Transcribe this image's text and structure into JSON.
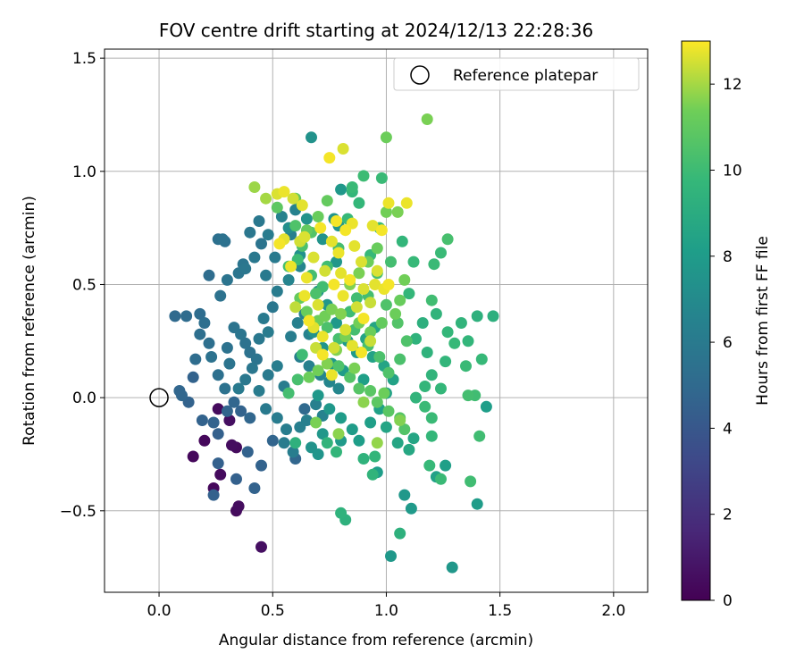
{
  "chart_data": {
    "type": "scatter",
    "title": "FOV centre drift starting at 2024/12/13 22:28:36",
    "xlabel": "Angular distance from reference (arcmin)",
    "ylabel": "Rotation from reference (arcmin)",
    "xlim": [
      -0.24,
      2.15
    ],
    "ylim": [
      -0.86,
      1.54
    ],
    "x_ticks": [
      0.0,
      0.5,
      1.0,
      1.5,
      2.0
    ],
    "x_tick_labels": [
      "0.0",
      "0.5",
      "1.0",
      "1.5",
      "2.0"
    ],
    "y_ticks": [
      -0.5,
      0.0,
      0.5,
      1.0,
      1.5
    ],
    "y_tick_labels": [
      "−0.5",
      "0.0",
      "0.5",
      "1.0",
      "1.5"
    ],
    "grid": true,
    "legend": {
      "placement": "top-right",
      "entries": [
        "Reference platepar"
      ]
    },
    "reference_point": {
      "x": 0.0,
      "y": 0.0,
      "marker": "open-circle"
    },
    "colorbar": {
      "label": "Hours from first FF file",
      "range": [
        0,
        13
      ],
      "ticks": [
        0,
        2,
        4,
        6,
        8,
        10,
        12
      ],
      "tick_labels": [
        "0",
        "2",
        "4",
        "6",
        "8",
        "10",
        "12"
      ],
      "colormap": "viridis"
    },
    "points": [
      [
        0.2,
        -0.19,
        0.3
      ],
      [
        0.15,
        -0.26,
        0.3
      ],
      [
        0.24,
        -0.4,
        0.3
      ],
      [
        0.26,
        -0.05,
        0.4
      ],
      [
        0.27,
        -0.34,
        0.4
      ],
      [
        0.32,
        -0.21,
        0.5
      ],
      [
        0.34,
        -0.22,
        0.4
      ],
      [
        0.35,
        -0.48,
        0.5
      ],
      [
        0.34,
        -0.5,
        0.4
      ],
      [
        0.45,
        -0.66,
        0.6
      ],
      [
        0.31,
        -0.1,
        0.6
      ],
      [
        0.09,
        0.03,
        4.8
      ],
      [
        0.1,
        0.01,
        4.8
      ],
      [
        0.13,
        -0.02,
        4.6
      ],
      [
        0.15,
        0.09,
        4.6
      ],
      [
        0.19,
        -0.1,
        4.6
      ],
      [
        0.24,
        -0.11,
        4.6
      ],
      [
        0.26,
        -0.16,
        4.5
      ],
      [
        0.24,
        -0.43,
        4.5
      ],
      [
        0.26,
        -0.29,
        4.5
      ],
      [
        0.34,
        -0.36,
        4.5
      ],
      [
        0.39,
        -0.24,
        4.6
      ],
      [
        0.42,
        -0.4,
        4.6
      ],
      [
        0.45,
        -0.3,
        4.6
      ],
      [
        0.3,
        -0.06,
        4.7
      ],
      [
        0.33,
        -0.02,
        4.8
      ],
      [
        0.36,
        -0.06,
        4.6
      ],
      [
        0.4,
        -0.09,
        4.8
      ],
      [
        0.5,
        -0.19,
        4.7
      ],
      [
        0.6,
        -0.27,
        4.8
      ],
      [
        0.64,
        -0.05,
        5.0
      ],
      [
        0.07,
        0.36,
        5.0
      ],
      [
        0.12,
        0.36,
        5.1
      ],
      [
        0.18,
        0.37,
        5.2
      ],
      [
        0.2,
        0.33,
        5.3
      ],
      [
        0.16,
        0.17,
        5.2
      ],
      [
        0.18,
        0.28,
        5.3
      ],
      [
        0.22,
        0.24,
        5.3
      ],
      [
        0.23,
        0.18,
        5.5
      ],
      [
        0.26,
        0.1,
        5.4
      ],
      [
        0.29,
        0.04,
        5.5
      ],
      [
        0.31,
        0.15,
        5.6
      ],
      [
        0.3,
        0.22,
        5.5
      ],
      [
        0.33,
        0.31,
        5.6
      ],
      [
        0.36,
        0.28,
        5.7
      ],
      [
        0.38,
        0.24,
        5.5
      ],
      [
        0.4,
        0.2,
        5.5
      ],
      [
        0.43,
        0.17,
        5.6
      ],
      [
        0.27,
        0.45,
        5.5
      ],
      [
        0.3,
        0.52,
        5.6
      ],
      [
        0.35,
        0.55,
        5.7
      ],
      [
        0.38,
        0.57,
        5.8
      ],
      [
        0.42,
        0.62,
        5.9
      ],
      [
        0.45,
        0.68,
        5.6
      ],
      [
        0.48,
        0.72,
        6.1
      ],
      [
        0.51,
        0.62,
        6.0
      ],
      [
        0.44,
        0.78,
        5.9
      ],
      [
        0.37,
        0.59,
        5.7
      ],
      [
        0.47,
        0.54,
        6.0
      ],
      [
        0.52,
        0.47,
        6.1
      ],
      [
        0.5,
        0.4,
        5.8
      ],
      [
        0.46,
        0.35,
        6.0
      ],
      [
        0.48,
        0.29,
        6.1
      ],
      [
        0.44,
        0.26,
        5.9
      ],
      [
        0.41,
        0.13,
        5.8
      ],
      [
        0.38,
        0.08,
        5.9
      ],
      [
        0.35,
        0.04,
        6.0
      ],
      [
        0.44,
        0.03,
        6.1
      ],
      [
        0.48,
        0.1,
        6.0
      ],
      [
        0.52,
        0.14,
        6.2
      ],
      [
        0.55,
        0.05,
        6.1
      ],
      [
        0.47,
        -0.05,
        6.0
      ],
      [
        0.52,
        -0.09,
        6.1
      ],
      [
        0.56,
        -0.14,
        6.2
      ],
      [
        0.55,
        -0.2,
        6.1
      ],
      [
        0.59,
        -0.24,
        6.2
      ],
      [
        0.62,
        -0.13,
        6.3
      ],
      [
        0.65,
        -0.1,
        6.3
      ],
      [
        0.69,
        -0.03,
        6.4
      ],
      [
        0.72,
        -0.08,
        6.5
      ],
      [
        0.58,
        0.27,
        6.2
      ],
      [
        0.61,
        0.33,
        6.4
      ],
      [
        0.64,
        0.37,
        6.5
      ],
      [
        0.66,
        0.28,
        6.5
      ],
      [
        0.62,
        0.18,
        6.3
      ],
      [
        0.66,
        0.14,
        6.4
      ],
      [
        0.71,
        0.1,
        6.6
      ],
      [
        0.75,
        0.07,
        6.7
      ],
      [
        0.79,
        0.04,
        6.8
      ],
      [
        0.58,
        0.72,
        6.3
      ],
      [
        0.54,
        0.8,
        6.5
      ],
      [
        0.6,
        0.83,
        6.5
      ],
      [
        0.57,
        0.52,
        6.6
      ],
      [
        0.62,
        0.58,
        6.7
      ],
      [
        0.29,
        0.69,
        5.4
      ],
      [
        0.28,
        0.7,
        5.5
      ],
      [
        0.26,
        0.7,
        5.4
      ],
      [
        0.4,
        0.73,
        5.8
      ],
      [
        0.22,
        0.54,
        5.2
      ],
      [
        0.67,
        1.15,
        7.4
      ],
      [
        0.57,
        0.75,
        7.2
      ],
      [
        0.62,
        0.63,
        7.4
      ],
      [
        0.65,
        0.79,
        7.5
      ],
      [
        0.72,
        0.7,
        7.5
      ],
      [
        0.78,
        0.6,
        7.7
      ],
      [
        0.79,
        0.76,
        7.6
      ],
      [
        0.8,
        0.92,
        7.8
      ],
      [
        0.77,
        0.79,
        7.6
      ],
      [
        0.7,
        0.47,
        7.5
      ],
      [
        0.74,
        0.41,
        7.7
      ],
      [
        0.78,
        0.33,
        7.8
      ],
      [
        0.83,
        0.25,
        7.9
      ],
      [
        0.87,
        0.2,
        7.9
      ],
      [
        0.81,
        0.12,
        8.0
      ],
      [
        0.76,
        0.15,
        7.8
      ],
      [
        0.72,
        0.22,
        7.6
      ],
      [
        0.68,
        0.29,
        7.4
      ],
      [
        0.7,
        0.01,
        7.8
      ],
      [
        0.75,
        -0.05,
        7.8
      ],
      [
        0.8,
        -0.09,
        8.0
      ],
      [
        0.85,
        -0.14,
        8.0
      ],
      [
        0.88,
        -0.19,
        8.1
      ],
      [
        0.93,
        -0.11,
        8.2
      ],
      [
        0.97,
        -0.05,
        8.3
      ],
      [
        1.0,
        0.02,
        8.3
      ],
      [
        1.03,
        0.08,
        8.4
      ],
      [
        0.99,
        0.14,
        8.5
      ],
      [
        0.94,
        0.18,
        8.4
      ],
      [
        0.91,
        0.26,
        8.5
      ],
      [
        0.95,
        0.31,
        8.6
      ],
      [
        1.0,
        -0.13,
        8.5
      ],
      [
        1.05,
        -0.2,
        8.6
      ],
      [
        1.1,
        -0.23,
        8.7
      ],
      [
        1.12,
        -0.18,
        8.6
      ],
      [
        0.96,
        -0.33,
        8.1
      ],
      [
        0.8,
        -0.19,
        7.9
      ],
      [
        0.72,
        -0.16,
        7.7
      ],
      [
        0.7,
        -0.25,
        7.6
      ],
      [
        0.67,
        -0.22,
        7.5
      ],
      [
        0.9,
        0.08,
        8.2
      ],
      [
        1.08,
        -0.43,
        7.8
      ],
      [
        1.11,
        -0.49,
        7.9
      ],
      [
        1.29,
        -0.75,
        7.7
      ],
      [
        1.02,
        -0.7,
        7.8
      ],
      [
        1.4,
        -0.47,
        8.0
      ],
      [
        1.44,
        -0.04,
        8.1
      ],
      [
        1.26,
        -0.3,
        8.2
      ],
      [
        1.22,
        -0.35,
        8.3
      ],
      [
        0.82,
        -0.54,
        9.3
      ],
      [
        0.8,
        -0.51,
        9.4
      ],
      [
        1.06,
        -0.6,
        9.3
      ],
      [
        0.94,
        -0.34,
        9.5
      ],
      [
        0.9,
        -0.27,
        9.4
      ],
      [
        0.95,
        -0.26,
        9.6
      ],
      [
        0.78,
        -0.24,
        9.6
      ],
      [
        0.74,
        -0.2,
        9.5
      ],
      [
        0.6,
        -0.2,
        9.3
      ],
      [
        1.13,
        0.0,
        9.5
      ],
      [
        1.17,
        0.05,
        9.6
      ],
      [
        1.2,
        0.1,
        9.5
      ],
      [
        1.24,
        0.04,
        9.7
      ],
      [
        1.26,
        0.16,
        9.6
      ],
      [
        1.18,
        0.2,
        9.4
      ],
      [
        1.13,
        0.26,
        9.4
      ],
      [
        1.16,
        0.33,
        9.2
      ],
      [
        1.22,
        0.37,
        9.5
      ],
      [
        1.27,
        0.29,
        9.7
      ],
      [
        1.3,
        0.24,
        9.8
      ],
      [
        1.36,
        0.25,
        9.6
      ],
      [
        1.33,
        0.33,
        9.5
      ],
      [
        1.4,
        0.36,
        9.3
      ],
      [
        1.47,
        0.36,
        9.2
      ],
      [
        1.42,
        0.17,
        9.8
      ],
      [
        1.35,
        0.14,
        9.9
      ],
      [
        1.39,
        0.01,
        10.1
      ],
      [
        1.36,
        0.01,
        10.2
      ],
      [
        1.41,
        -0.17,
        10.1
      ],
      [
        1.37,
        -0.37,
        10.1
      ],
      [
        1.24,
        -0.36,
        9.9
      ],
      [
        1.19,
        -0.3,
        9.8
      ],
      [
        1.2,
        -0.17,
        9.7
      ],
      [
        1.2,
        -0.09,
        9.9
      ],
      [
        1.17,
        -0.04,
        9.9
      ],
      [
        1.12,
        0.6,
        9.8
      ],
      [
        1.21,
        0.59,
        9.9
      ],
      [
        1.24,
        0.64,
        9.9
      ],
      [
        1.27,
        0.7,
        10.3
      ],
      [
        1.1,
        0.46,
        9.7
      ],
      [
        1.2,
        0.43,
        10.1
      ],
      [
        1.07,
        0.69,
        9.6
      ],
      [
        0.98,
        0.97,
        9.9
      ],
      [
        0.93,
        0.63,
        9.8
      ],
      [
        0.88,
        0.86,
        9.7
      ],
      [
        0.85,
        0.91,
        9.7
      ],
      [
        0.83,
        0.79,
        9.8
      ],
      [
        0.85,
        0.93,
        9.9
      ],
      [
        0.9,
        0.98,
        10.0
      ],
      [
        0.97,
        0.75,
        9.9
      ],
      [
        1.02,
        0.6,
        10.2
      ],
      [
        0.96,
        0.55,
        10.3
      ],
      [
        0.92,
        0.45,
        10.2
      ],
      [
        0.87,
        0.44,
        10.1
      ],
      [
        0.84,
        0.38,
        10.0
      ],
      [
        0.86,
        0.3,
        10.2
      ],
      [
        0.92,
        0.23,
        10.3
      ],
      [
        0.97,
        0.18,
        10.4
      ],
      [
        1.01,
        0.11,
        10.5
      ],
      [
        1.06,
        0.17,
        10.4
      ],
      [
        1.09,
        0.25,
        10.5
      ],
      [
        1.05,
        0.33,
        10.6
      ],
      [
        1.0,
        0.41,
        10.5
      ],
      [
        0.79,
        0.66,
        10.2
      ],
      [
        0.74,
        0.58,
        10.1
      ],
      [
        0.72,
        0.49,
        10.1
      ],
      [
        0.67,
        0.54,
        10.2
      ],
      [
        0.69,
        0.46,
        10.4
      ],
      [
        0.74,
        0.31,
        10.4
      ],
      [
        0.79,
        0.26,
        10.3
      ],
      [
        0.79,
        0.14,
        10.5
      ],
      [
        0.84,
        0.09,
        10.6
      ],
      [
        0.88,
        0.04,
        10.7
      ],
      [
        0.93,
        0.03,
        10.8
      ],
      [
        0.96,
        -0.02,
        10.9
      ],
      [
        1.01,
        -0.06,
        10.8
      ],
      [
        1.06,
        -0.09,
        10.7
      ],
      [
        1.08,
        -0.14,
        10.6
      ],
      [
        0.63,
        0.19,
        10.0
      ],
      [
        0.61,
        0.08,
        10.3
      ],
      [
        0.57,
        0.02,
        10.2
      ],
      [
        0.61,
        0.61,
        10.0
      ],
      [
        0.63,
        0.67,
        10.4
      ],
      [
        0.67,
        0.73,
        10.6
      ],
      [
        0.6,
        0.76,
        10.5
      ],
      [
        0.57,
        0.58,
        10.3
      ],
      [
        0.52,
        0.84,
        10.9
      ],
      [
        0.6,
        0.88,
        11.0
      ],
      [
        0.65,
        0.74,
        11.1
      ],
      [
        0.7,
        0.8,
        11.2
      ],
      [
        0.74,
        0.87,
        11.1
      ],
      [
        0.62,
        0.44,
        11.1
      ],
      [
        0.65,
        0.38,
        11.2
      ],
      [
        0.7,
        0.34,
        11.3
      ],
      [
        0.73,
        0.36,
        11.4
      ],
      [
        0.76,
        0.39,
        11.5
      ],
      [
        0.8,
        0.37,
        11.6
      ],
      [
        0.84,
        0.5,
        11.6
      ],
      [
        0.88,
        0.55,
        11.5
      ],
      [
        0.92,
        0.6,
        11.3
      ],
      [
        0.96,
        0.66,
        11.2
      ],
      [
        1.0,
        0.82,
        11.4
      ],
      [
        1.05,
        0.82,
        11.5
      ],
      [
        1.08,
        0.52,
        11.4
      ],
      [
        1.06,
        0.43,
        11.2
      ],
      [
        1.04,
        0.37,
        11.3
      ],
      [
        0.98,
        0.33,
        11.1
      ],
      [
        0.93,
        0.29,
        11.3
      ],
      [
        0.88,
        0.33,
        11.4
      ],
      [
        0.82,
        0.27,
        11.5
      ],
      [
        0.78,
        0.21,
        11.6
      ],
      [
        0.74,
        0.15,
        11.6
      ],
      [
        0.7,
        0.12,
        11.4
      ],
      [
        0.66,
        0.09,
        11.3
      ],
      [
        0.69,
        -0.11,
        11.5
      ],
      [
        0.79,
        -0.16,
        11.7
      ],
      [
        0.96,
        -0.2,
        11.8
      ],
      [
        1.06,
        -0.1,
        11.6
      ],
      [
        0.99,
        0.02,
        11.3
      ],
      [
        0.9,
        -0.02,
        11.7
      ],
      [
        0.86,
        0.13,
        11.5
      ],
      [
        1.18,
        1.23,
        11.5
      ],
      [
        1.0,
        1.15,
        11.3
      ],
      [
        0.42,
        0.93,
        11.9
      ],
      [
        0.47,
        0.88,
        12.0
      ],
      [
        0.52,
        0.9,
        12.6
      ],
      [
        0.55,
        0.91,
        12.8
      ],
      [
        0.59,
        0.88,
        12.5
      ],
      [
        0.63,
        0.85,
        12.7
      ],
      [
        0.75,
        1.06,
        12.9
      ],
      [
        0.81,
        1.1,
        12.6
      ],
      [
        1.09,
        0.86,
        12.8
      ],
      [
        0.98,
        0.74,
        12.9
      ],
      [
        0.94,
        0.76,
        12.7
      ],
      [
        0.85,
        0.77,
        12.8
      ],
      [
        0.82,
        0.74,
        12.9
      ],
      [
        0.86,
        0.67,
        12.7
      ],
      [
        0.89,
        0.6,
        12.6
      ],
      [
        0.79,
        0.64,
        12.8
      ],
      [
        0.76,
        0.69,
        12.7
      ],
      [
        0.71,
        0.75,
        12.9
      ],
      [
        0.64,
        0.71,
        12.6
      ],
      [
        0.62,
        0.69,
        12.5
      ],
      [
        0.55,
        0.7,
        12.7
      ],
      [
        0.58,
        0.58,
        12.8
      ],
      [
        0.73,
        0.56,
        12.5
      ],
      [
        0.77,
        0.5,
        12.9
      ],
      [
        0.81,
        0.45,
        12.8
      ],
      [
        0.87,
        0.4,
        12.5
      ],
      [
        0.9,
        0.35,
        12.9
      ],
      [
        0.93,
        0.42,
        12.4
      ],
      [
        0.95,
        0.5,
        12.7
      ],
      [
        0.99,
        0.48,
        12.8
      ],
      [
        1.01,
        0.5,
        12.9
      ],
      [
        0.96,
        0.56,
        12.6
      ],
      [
        0.9,
        0.48,
        12.6
      ],
      [
        0.84,
        0.52,
        12.9
      ],
      [
        0.8,
        0.55,
        12.7
      ],
      [
        0.82,
        0.3,
        12.6
      ],
      [
        0.77,
        0.22,
        12.5
      ],
      [
        0.72,
        0.27,
        12.8
      ],
      [
        0.69,
        0.22,
        12.4
      ],
      [
        0.68,
        0.31,
        12.7
      ],
      [
        0.66,
        0.34,
        12.9
      ],
      [
        0.6,
        0.4,
        12.3
      ],
      [
        0.64,
        0.45,
        12.8
      ],
      [
        0.7,
        0.41,
        12.6
      ],
      [
        0.72,
        0.19,
        12.9
      ],
      [
        0.76,
        0.1,
        12.8
      ],
      [
        0.85,
        0.23,
        12.7
      ],
      [
        0.89,
        0.2,
        12.9
      ],
      [
        0.93,
        0.25,
        12.4
      ],
      [
        0.53,
        0.68,
        12.9
      ],
      [
        0.65,
        0.53,
        12.8
      ],
      [
        0.68,
        0.62,
        12.6
      ],
      [
        0.78,
        0.78,
        12.9
      ],
      [
        1.01,
        0.86,
        12.8
      ]
    ]
  }
}
